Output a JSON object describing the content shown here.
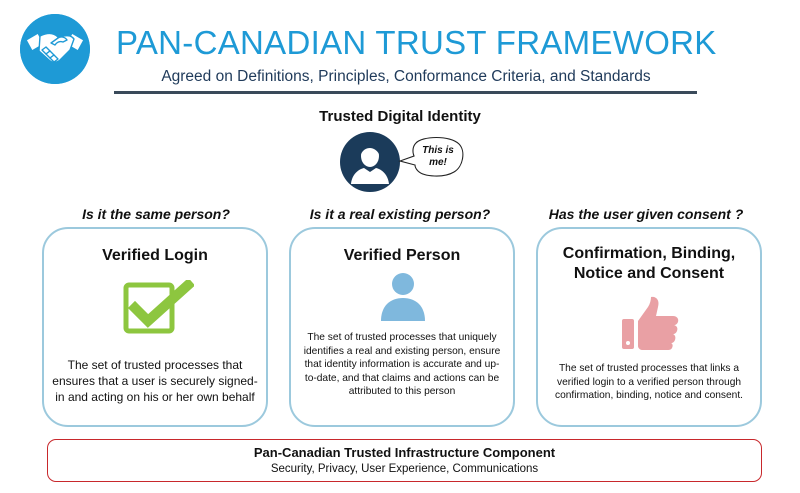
{
  "header": {
    "logo_icon": "handshake-icon",
    "title": "PAN-CANADIAN TRUST FRAMEWORK",
    "subtitle": "Agreed on Definitions, Principles, Conformance Criteria, and Standards"
  },
  "identity": {
    "label": "Trusted Digital Identity",
    "avatar_icon": "user-avatar-icon",
    "speech": "This is me!"
  },
  "questions": [
    "Is it the same person?",
    "Is it a real existing person?",
    "Has the user given consent ?"
  ],
  "cards": [
    {
      "title": "Verified Login",
      "icon": "checkbox-check-icon",
      "description": "The set of trusted processes that ensures that a user is securely signed-in and acting on his or her own behalf"
    },
    {
      "title": "Verified Person",
      "icon": "person-icon",
      "description": "The set of trusted processes that uniquely identifies a real and existing person, ensure that identity information is accurate and up-to-date, and that claims and actions can be attributed to this person"
    },
    {
      "title": "Confirmation, Binding, Notice and Consent",
      "icon": "thumbs-up-icon",
      "description": "The set of trusted processes that links a verified login to a verified person through confirmation, binding, notice and consent."
    }
  ],
  "infrastructure": {
    "title": "Pan-Canadian Trusted Infrastructure Component",
    "subtitle": "Security, Privacy, User Experience, Communications"
  },
  "colors": {
    "title_blue": "#1e9ad6",
    "card_border": "#9cc9dd",
    "check_green": "#8dc63f",
    "person_blue": "#7fb8dd",
    "thumb_pink": "#e9a0a4",
    "infra_border": "#c8282c",
    "avatar_navy": "#1b3b5a"
  }
}
